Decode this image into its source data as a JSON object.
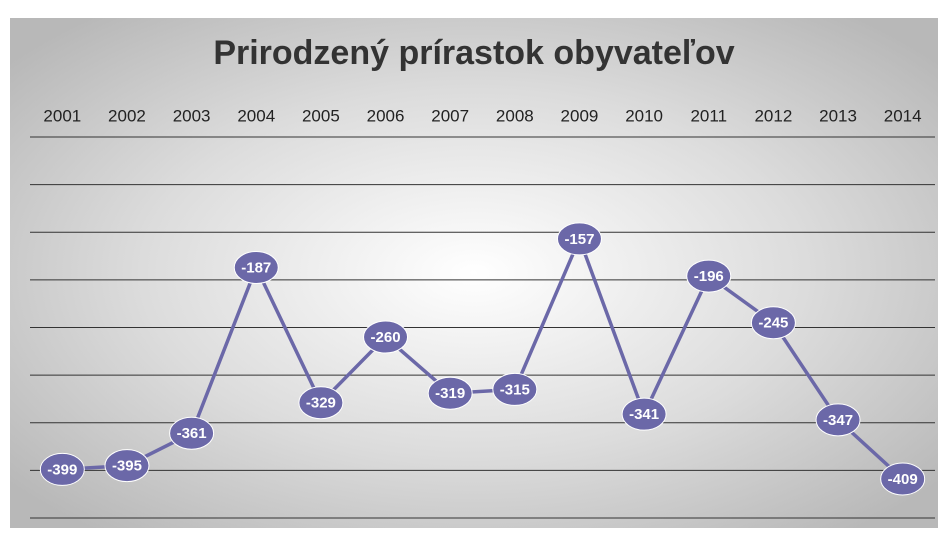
{
  "chart_data": {
    "type": "line",
    "title": "Prirodzený prírastok obyvateľov",
    "categories": [
      "2001",
      "2002",
      "2003",
      "2004",
      "2005",
      "2006",
      "2007",
      "2008",
      "2009",
      "2010",
      "2011",
      "2012",
      "2013",
      "2014"
    ],
    "series": [
      {
        "name": "Prirodzený prírastok",
        "color": "#6b68a8",
        "values": [
          -399,
          -395,
          -361,
          -187,
          -329,
          -260,
          -319,
          -315,
          -157,
          -341,
          -196,
          -245,
          -347,
          -409
        ]
      }
    ],
    "ylim": [
      -450,
      -50
    ],
    "yticks": [
      -450,
      -400,
      -350,
      -300,
      -250,
      -200,
      -150,
      -100,
      -50
    ],
    "grid": true
  }
}
